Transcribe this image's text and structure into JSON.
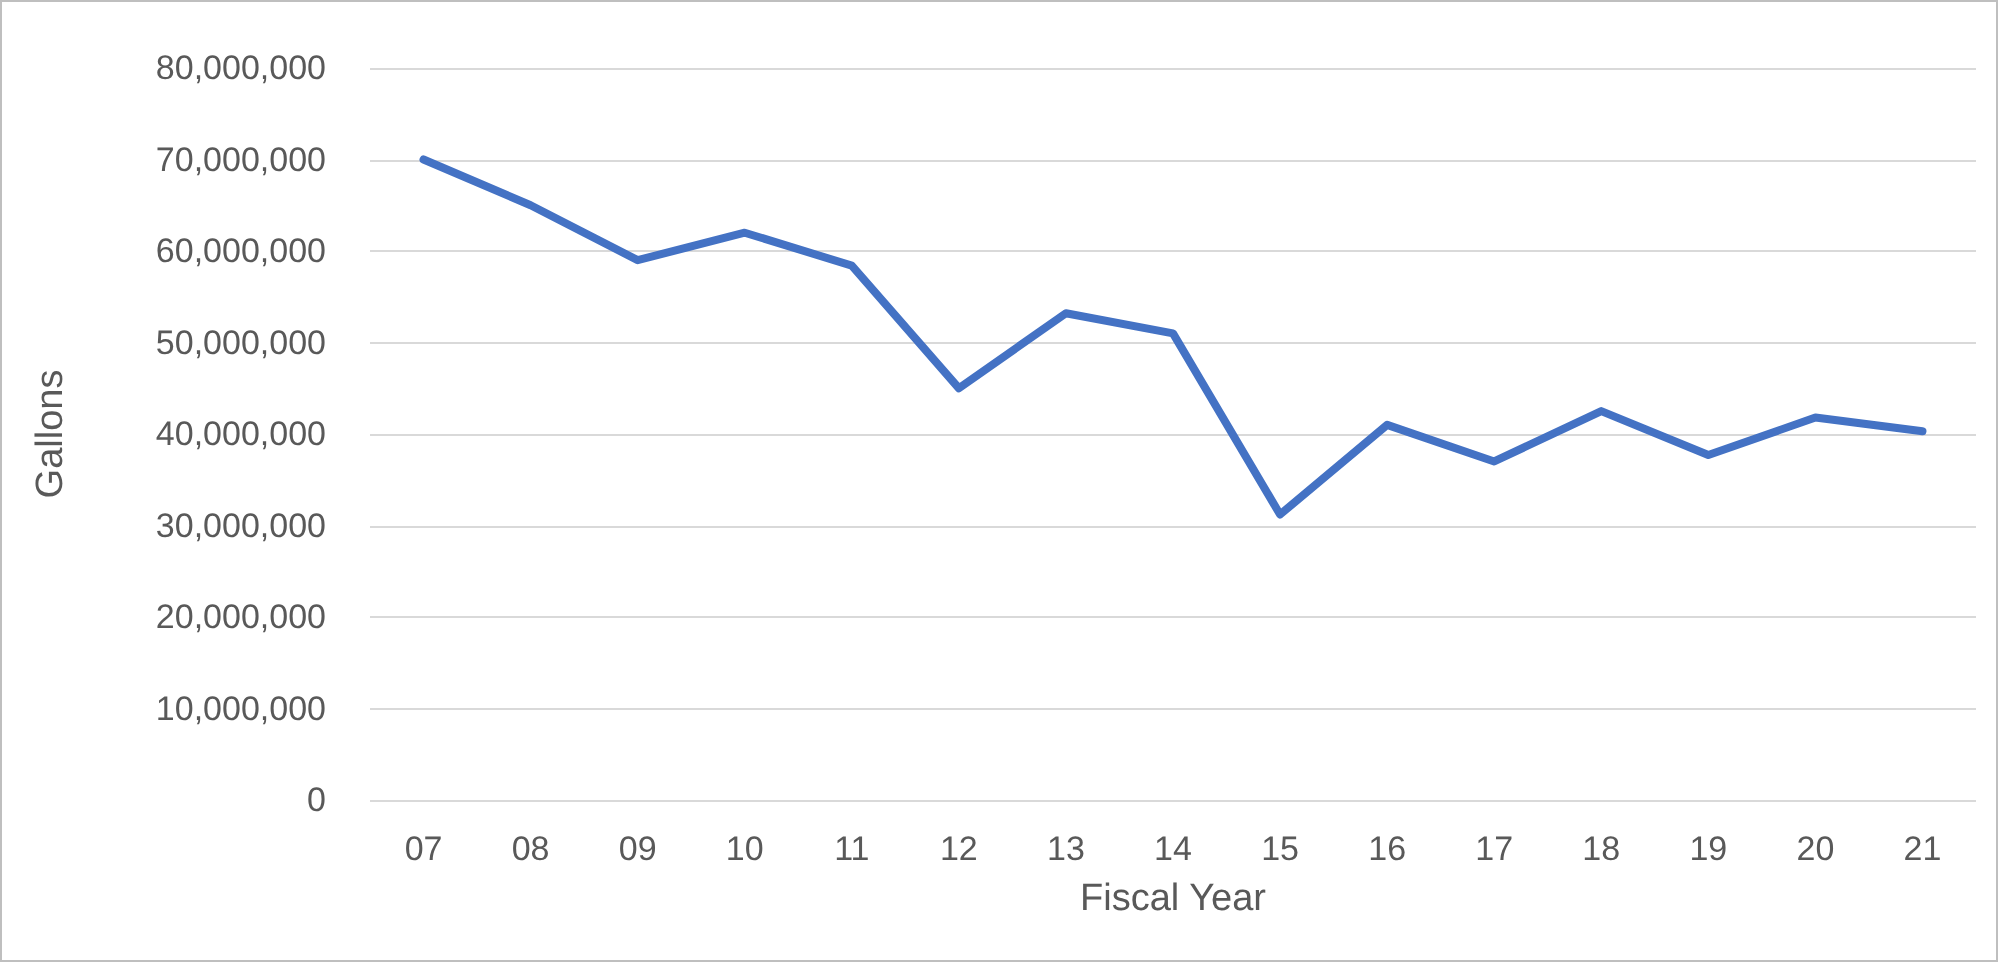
{
  "chart_data": {
    "type": "line",
    "xlabel": "Fiscal Year",
    "ylabel": "Gallons",
    "categories": [
      "07",
      "08",
      "09",
      "10",
      "11",
      "12",
      "13",
      "14",
      "15",
      "16",
      "17",
      "18",
      "19",
      "20",
      "21"
    ],
    "series": [
      {
        "color": "#4472c4",
        "values": [
          70000000,
          65000000,
          59000000,
          62000000,
          58400000,
          45000000,
          53200000,
          51000000,
          31200000,
          41000000,
          37000000,
          42500000,
          37700000,
          41800000,
          40300000
        ]
      }
    ],
    "ylim": [
      0,
      80000000
    ],
    "yticks": [
      0,
      {
        "value": 10000000,
        "label": "10,000,000"
      },
      {
        "value": 20000000,
        "label": "20,000,000"
      },
      {
        "value": 30000000,
        "label": "30,000,000"
      },
      {
        "value": 40000000,
        "label": "40,000,000"
      },
      {
        "value": 50000000,
        "label": "50,000,000"
      },
      {
        "value": 60000000,
        "label": "60,000,000"
      },
      {
        "value": 70000000,
        "label": "70,000,000"
      },
      {
        "value": 80000000,
        "label": "80,000,000"
      }
    ],
    "grid": "y",
    "marker": "none",
    "line_style": "solid"
  }
}
